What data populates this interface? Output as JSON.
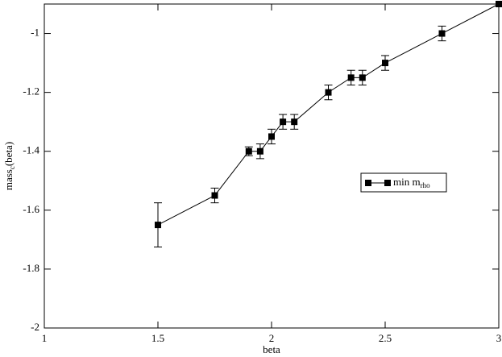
{
  "chart_data": {
    "type": "line",
    "x_label": "beta",
    "y_label": {
      "main": "mass",
      "sub": "c",
      "tail": "(beta)"
    },
    "x": [
      1.5,
      1.75,
      1.9,
      1.95,
      2.0,
      2.05,
      2.1,
      2.25,
      2.35,
      2.4,
      2.5,
      2.75,
      3.0
    ],
    "series": [
      {
        "name": "min m",
        "name_sub": "rho",
        "color": "#000000",
        "values": [
          -1.65,
          -1.55,
          -1.4,
          -1.4,
          -1.35,
          -1.3,
          -1.3,
          -1.2,
          -1.15,
          -1.15,
          -1.1,
          -1.0,
          -0.9
        ],
        "errors": [
          0.075,
          0.025,
          0.015,
          0.025,
          0.025,
          0.025,
          0.025,
          0.025,
          0.025,
          0.025,
          0.025,
          0.025,
          0.0
        ]
      }
    ],
    "xlim": [
      1,
      3
    ],
    "xticks": [
      1,
      1.5,
      2,
      2.5,
      3
    ],
    "ylim": [
      -2,
      -0.9
    ],
    "yticks": [
      -2,
      -1.8,
      -1.6,
      -1.4,
      -1.2,
      -1
    ],
    "grid": false
  }
}
